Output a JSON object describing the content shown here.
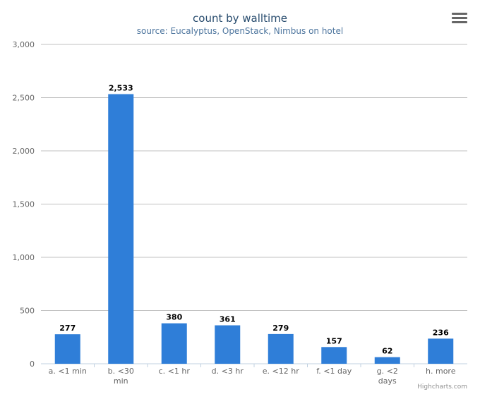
{
  "chart_data": {
    "type": "bar",
    "title": "count by walltime",
    "subtitle": "source: Eucalyptus, OpenStack, Nimbus on hotel",
    "categories": [
      [
        "a. <1 min"
      ],
      [
        "b. <30",
        "min"
      ],
      [
        "c. <1 hr"
      ],
      [
        "d. <3 hr"
      ],
      [
        "e. <12 hr"
      ],
      [
        "f. <1 day"
      ],
      [
        "g. <2",
        "days"
      ],
      [
        "h. more"
      ]
    ],
    "values": [
      277,
      2533,
      380,
      361,
      279,
      157,
      62,
      236
    ],
    "value_labels": [
      "277",
      "2,533",
      "380",
      "361",
      "279",
      "157",
      "62",
      "236"
    ],
    "ylim": [
      0,
      3000
    ],
    "yticks": [
      0,
      500,
      1000,
      1500,
      2000,
      2500,
      3000
    ],
    "ytick_labels": [
      "0",
      "500",
      "1,000",
      "1,500",
      "2,000",
      "2,500",
      "3,000"
    ],
    "bar_color": "#2f7ed8",
    "grid": true,
    "legend": "none"
  },
  "menu_icon": "hamburger-menu-icon",
  "credits": "Highcharts.com"
}
